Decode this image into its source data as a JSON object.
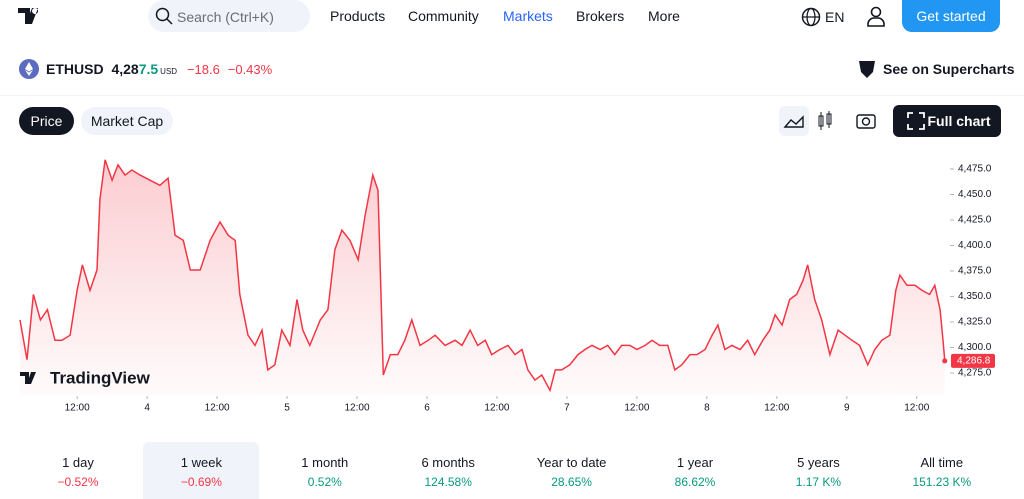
{
  "nav": {
    "search": "Search (Ctrl+K)",
    "items": [
      "Products",
      "Community",
      "Markets",
      "Brokers",
      "More"
    ],
    "active": 2,
    "lang": "EN",
    "cta": "Get started"
  },
  "symbol": {
    "ticker": "ETHUSD",
    "price_main": "4,28",
    "price_last": "7.5",
    "currency": "USD",
    "change": "−18.6",
    "change_pct": "−0.43%",
    "supercharts": "See on Supercharts"
  },
  "tabs": {
    "items": [
      "Price",
      "Market Cap"
    ],
    "active": 0,
    "full_chart": "Full chart"
  },
  "chart_data": {
    "type": "area",
    "watermark": "TradingView",
    "color": "#f23645",
    "x": [
      2.2,
      3.4,
      4.5,
      5.7,
      6.9,
      8.2,
      9.4,
      10.8,
      12,
      12.9,
      14.2,
      15.4,
      15.9,
      16.8,
      18,
      19,
      20.2,
      21.4,
      22.8,
      24.5,
      26.2,
      27.6,
      28.8,
      30.2,
      31.4,
      33.1,
      34.8,
      36.5,
      37.9,
      39.1,
      39.9,
      41.3,
      42.5,
      43.7,
      44.7,
      45.9,
      47.1,
      48.5,
      49.7,
      50.7,
      51.9,
      53.7,
      55,
      56.2,
      57.4,
      58.8,
      60.2,
      61.4,
      62.7,
      63.6,
      64.5,
      65.7,
      67,
      68.2,
      69.4,
      70.8,
      72.2,
      73.4,
      75.1,
      76.8,
      78,
      79.4,
      80.7,
      82,
      83.1,
      84.5,
      85.9,
      87.1,
      88.3,
      89.3,
      90.5,
      91.7,
      93.1,
      94,
      95.1,
      96.5,
      97.9,
      99.1,
      100.3,
      101.7,
      103,
      104.2,
      105.4,
      106.8,
      108,
      109.4,
      110.6,
      111.9,
      113.3,
      114.5,
      115.7,
      117.1,
      118.3,
      119.7,
      120.9,
      121.9,
      123.1,
      124.3,
      125.7,
      127,
      128.2,
      129.6,
      130.8,
      131.7,
      132.9,
      134.2,
      135.4,
      136.5,
      137.3,
      138.5,
      139.7,
      141.1,
      142.5,
      143.7,
      144.9,
      146.2,
      147.6,
      148.8,
      150,
      151.4,
      152.4,
      153.1,
      154.3,
      155.7,
      156.9,
      158.2,
      159.1,
      160,
      160.5,
      160.8
    ],
    "values": [
      4327,
      4288,
      4352,
      4327,
      4337,
      4307,
      4307,
      4312,
      4356,
      4381,
      4356,
      4376,
      4445,
      4484,
      4464,
      4479,
      4469,
      4474,
      4469,
      4464,
      4459,
      4466,
      4410,
      4405,
      4376,
      4376,
      4405,
      4423,
      4410,
      4405,
      4352,
      4312,
      4302,
      4317,
      4278,
      4283,
      4317,
      4302,
      4347,
      4317,
      4302,
      4327,
      4337,
      4396,
      4415,
      4405,
      4386,
      4430,
      4469,
      4454,
      4273,
      4293,
      4293,
      4307,
      4327,
      4302,
      4307,
      4312,
      4302,
      4307,
      4302,
      4317,
      4302,
      4307,
      4293,
      4298,
      4302,
      4293,
      4298,
      4278,
      4268,
      4273,
      4258,
      4278,
      4278,
      4283,
      4293,
      4298,
      4302,
      4298,
      4302,
      4293,
      4302,
      4302,
      4298,
      4302,
      4307,
      4302,
      4302,
      4278,
      4283,
      4293,
      4293,
      4298,
      4312,
      4322,
      4298,
      4302,
      4298,
      4307,
      4293,
      4307,
      4317,
      4332,
      4322,
      4347,
      4352,
      4366,
      4381,
      4347,
      4327,
      4293,
      4317,
      4312,
      4307,
      4302,
      4283,
      4298,
      4307,
      4312,
      4356,
      4371,
      4361,
      4361,
      4356,
      4352,
      4361,
      4337,
      4307,
      4286.8
    ],
    "last_label": "4,286.8",
    "xlim": [
      2.2,
      161.7
    ],
    "ylim": [
      4253.4,
      4488.7
    ],
    "xticks": [
      {
        "value": 12,
        "label": "12:00"
      },
      {
        "value": 24,
        "label": "4"
      },
      {
        "value": 36,
        "label": "12:00"
      },
      {
        "value": 48,
        "label": "5"
      },
      {
        "value": 60,
        "label": "12:00"
      },
      {
        "value": 72,
        "label": "6"
      },
      {
        "value": 84,
        "label": "12:00"
      },
      {
        "value": 96,
        "label": "7"
      },
      {
        "value": 108,
        "label": "12:00"
      },
      {
        "value": 120,
        "label": "8"
      },
      {
        "value": 132,
        "label": "12:00"
      },
      {
        "value": 144,
        "label": "9"
      },
      {
        "value": 156,
        "label": "12:00"
      }
    ],
    "yticks": [
      {
        "value": 4275,
        "label": "4,275.0"
      },
      {
        "value": 4300,
        "label": "4,300.0"
      },
      {
        "value": 4325,
        "label": "4,325.0"
      },
      {
        "value": 4350,
        "label": "4,350.0"
      },
      {
        "value": 4375,
        "label": "4,375.0"
      },
      {
        "value": 4400,
        "label": "4,400.0"
      },
      {
        "value": 4425,
        "label": "4,425.0"
      },
      {
        "value": 4450,
        "label": "4,450.0"
      },
      {
        "value": 4475,
        "label": "4,475.0"
      }
    ]
  },
  "periods": {
    "active": 1,
    "items": [
      {
        "label": "1 day",
        "change": "−0.52%",
        "dir": "down"
      },
      {
        "label": "1 week",
        "change": "−0.69%",
        "dir": "down"
      },
      {
        "label": "1 month",
        "change": "0.52%",
        "dir": "up"
      },
      {
        "label": "6 months",
        "change": "124.58%",
        "dir": "up"
      },
      {
        "label": "Year to date",
        "change": "28.65%",
        "dir": "up"
      },
      {
        "label": "1 year",
        "change": "86.62%",
        "dir": "up"
      },
      {
        "label": "5 years",
        "change": "1.17 K%",
        "dir": "up"
      },
      {
        "label": "All time",
        "change": "151.23 K%",
        "dir": "up"
      }
    ]
  }
}
